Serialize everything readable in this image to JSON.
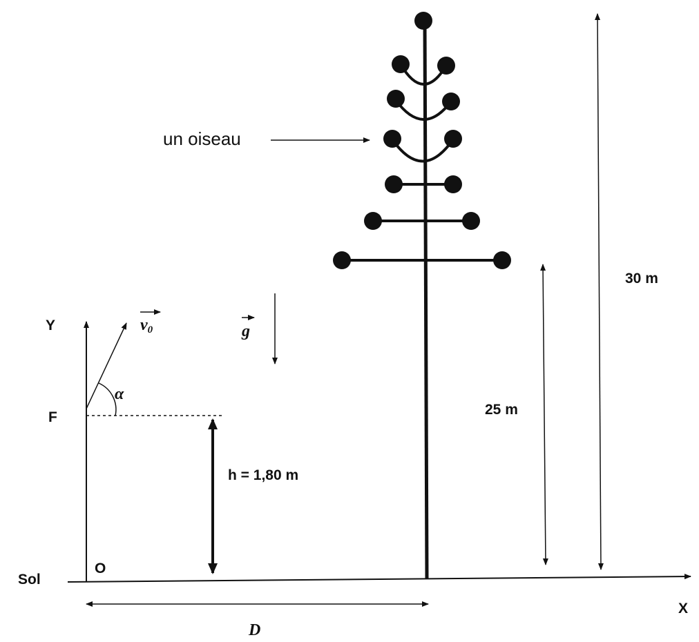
{
  "labels": {
    "bird": "un oiseau",
    "height_total": "30 m",
    "height_branch": "25 m",
    "height_launch": "h = 1,80 m",
    "axis_y": "Y",
    "axis_x": "X",
    "point_f": "F",
    "origin": "O",
    "ground": "Sol",
    "distance": "D",
    "angle": "α",
    "velocity": {
      "symbol": "v",
      "subscript": "0"
    },
    "gravity": "g"
  }
}
